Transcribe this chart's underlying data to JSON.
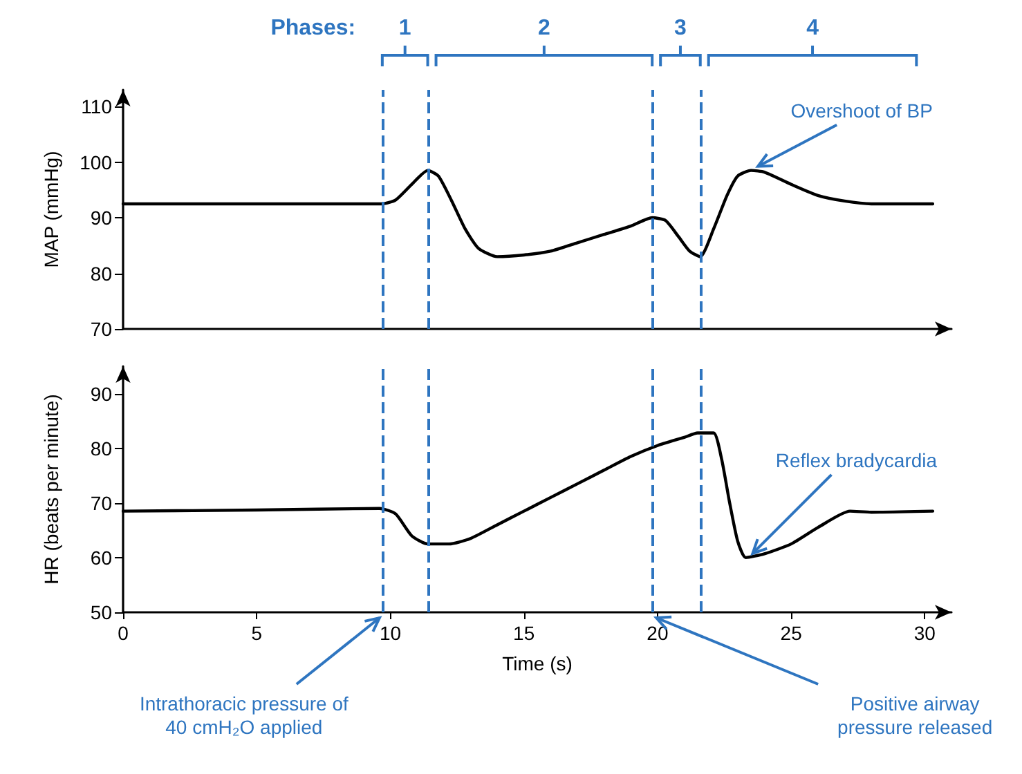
{
  "chart_data": [
    {
      "type": "line",
      "ylabel": "MAP (mmHg)",
      "tick_labels": "y",
      "grid": false,
      "x": [
        0,
        9.7,
        10.2,
        10.8,
        11.4,
        11.8,
        12.3,
        12.8,
        13.3,
        14,
        15,
        16,
        17,
        18,
        19,
        19.8,
        20.3,
        20.8,
        21.2,
        21.6,
        22.1,
        22.6,
        23,
        23.5,
        24,
        25,
        26,
        27,
        28,
        30.3
      ],
      "series": [
        {
          "color": "#000000",
          "values": [
            92.5,
            92.5,
            93.2,
            96,
            98.5,
            97.5,
            93,
            88,
            84.5,
            83,
            83.3,
            84,
            85.5,
            87,
            88.5,
            90,
            89.5,
            86.5,
            84,
            83,
            88,
            94,
            97.5,
            98.5,
            98.2,
            96,
            94,
            93,
            92.5,
            92.5
          ]
        }
      ],
      "xlim": [
        0,
        31
      ],
      "xticks": [
        0,
        5,
        10,
        15,
        20,
        25,
        30
      ],
      "ylim": [
        70,
        113
      ],
      "yticks": [
        70,
        80,
        90,
        100,
        110
      ],
      "ref_lines": [
        {
          "axis": "x",
          "value": 9.7,
          "color": "#2e75c0",
          "line_style": "dashed"
        },
        {
          "axis": "x",
          "value": 11.4,
          "color": "#2e75c0",
          "line_style": "dashed"
        },
        {
          "axis": "x",
          "value": 19.8,
          "color": "#2e75c0",
          "line_style": "dashed"
        },
        {
          "axis": "x",
          "value": 21.6,
          "color": "#2e75c0",
          "line_style": "dashed"
        }
      ],
      "annotations": [
        "Phases:",
        "1",
        "2",
        "3",
        "4",
        {
          "text": "Overshoot of BP",
          "x": 23.5,
          "y": 98.5
        }
      ]
    },
    {
      "type": "line",
      "ylabel": "HR (beats per minute)",
      "xlabel": "Time (s)",
      "grid": false,
      "x": [
        0,
        5,
        9.6,
        10.2,
        10.8,
        11.4,
        12.2,
        13,
        14,
        15,
        16,
        17,
        18,
        19,
        20,
        21,
        21.5,
        22.1,
        22.4,
        22.7,
        23,
        23.3,
        24,
        25,
        26,
        27.2,
        28,
        30.3
      ],
      "series": [
        {
          "color": "#000000",
          "values": [
            68.5,
            68.7,
            69,
            68,
            64,
            62.5,
            62.5,
            63.5,
            66,
            68.5,
            71,
            73.5,
            76,
            78.5,
            80.5,
            82,
            82.8,
            82.8,
            78,
            70,
            63,
            60,
            60.7,
            62.5,
            65.5,
            68.5,
            68.3,
            68.5
          ]
        }
      ],
      "xlim": [
        0,
        31
      ],
      "xticks": [
        0,
        5,
        10,
        15,
        20,
        25,
        30
      ],
      "ylim": [
        50,
        95
      ],
      "yticks": [
        50,
        60,
        70,
        80,
        90
      ],
      "ref_lines": [
        {
          "axis": "x",
          "value": 9.7,
          "color": "#2e75c0",
          "line_style": "dashed"
        },
        {
          "axis": "x",
          "value": 11.4,
          "color": "#2e75c0",
          "line_style": "dashed"
        },
        {
          "axis": "x",
          "value": 19.8,
          "color": "#2e75c0",
          "line_style": "dashed"
        },
        {
          "axis": "x",
          "value": 21.6,
          "color": "#2e75c0",
          "line_style": "dashed"
        }
      ],
      "annotations": [
        {
          "text": "Reflex bradycardia",
          "x": 23.3,
          "y": 60
        },
        "Intrathoracic pressure of 40 cmH₂O applied",
        "Positive airway pressure released"
      ]
    }
  ]
}
